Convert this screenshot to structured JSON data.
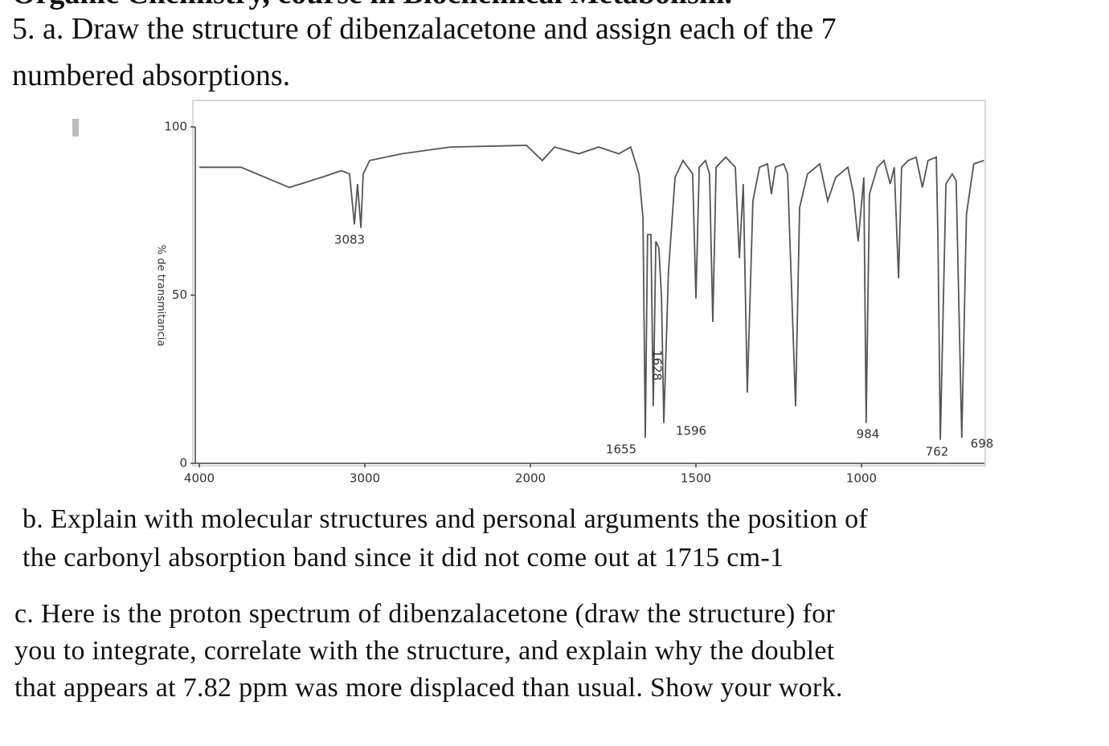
{
  "header": {
    "cut_line": "Organic Chemistry, course in Biochemical Metabolism."
  },
  "question_a": [
    "5. a. Draw the structure of dibenzalacetone and assign each of the 7",
    "numbered absorptions."
  ],
  "chart_data": {
    "type": "line",
    "y_label": "% de transmitancia",
    "xlim": [
      4000,
      630
    ],
    "ylim": [
      0,
      100
    ],
    "xticks": [
      4000,
      3000,
      2000,
      1500,
      1000
    ],
    "yticks": [
      0,
      50,
      100
    ],
    "color": "#555555",
    "x": [
      4000,
      3748,
      3456,
      3262,
      3141,
      3092,
      3063,
      3044,
      3024,
      3010,
      2971,
      2777,
      2485,
      2024,
      1964,
      1927,
      1854,
      1794,
      1733,
      1697,
      1672,
      1660,
      1653,
      1646,
      1636,
      1629,
      1621,
      1612,
      1604,
      1597,
      1583,
      1563,
      1539,
      1510,
      1500,
      1490,
      1471,
      1459,
      1449,
      1439,
      1410,
      1381,
      1369,
      1357,
      1345,
      1328,
      1308,
      1284,
      1272,
      1260,
      1235,
      1223,
      1199,
      1187,
      1163,
      1126,
      1102,
      1078,
      1041,
      1024,
      1010,
      993,
      986,
      976,
      952,
      932,
      913,
      901,
      888,
      879,
      859,
      835,
      816,
      799,
      774,
      769,
      762,
      745,
      726,
      714,
      697,
      683,
      661,
      630
    ],
    "values": [
      88,
      88,
      82,
      85,
      87,
      86,
      71,
      83,
      70,
      86,
      90,
      92,
      94,
      94.5,
      90,
      94,
      92,
      94,
      92,
      94,
      86,
      73,
      7.6,
      68,
      68,
      17,
      66,
      64,
      49,
      12,
      57,
      85,
      90,
      86,
      49,
      88,
      90,
      86,
      42,
      88,
      91,
      88,
      61,
      83,
      21,
      78,
      88,
      89,
      80,
      88,
      89,
      86,
      17,
      76,
      86,
      89,
      78,
      85,
      88,
      80,
      66,
      85,
      12,
      80,
      88,
      90,
      83,
      88,
      55,
      88,
      90,
      91,
      82,
      90,
      91,
      66,
      7,
      83,
      86,
      84,
      7.6,
      74,
      89,
      90
    ],
    "annotations": [
      "3083",
      "1655",
      "1628",
      "1596",
      "984",
      "762",
      "698"
    ]
  },
  "question_b": [
    "b. Explain with molecular structures and personal arguments the position of",
    "the carbonyl absorption band since it did not come out at 1715 cm-1"
  ],
  "question_c": [
    "c. Here is the proton spectrum of dibenzalacetone (draw the structure) for",
    "you to integrate, correlate with the structure, and explain why the doublet",
    "that appears at 7.82 ppm was more displaced than usual. Show your work."
  ]
}
